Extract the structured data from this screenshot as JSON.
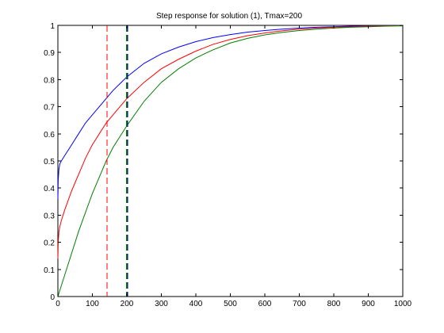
{
  "chart_data": {
    "type": "line",
    "title": "Step response for solution (1), Tmax=200",
    "xlabel": "",
    "ylabel": "",
    "xlim": [
      0,
      1000
    ],
    "ylim": [
      0,
      1
    ],
    "x_ticks": [
      0,
      100,
      200,
      300,
      400,
      500,
      600,
      700,
      800,
      900,
      1000
    ],
    "y_ticks": [
      0,
      0.1,
      0.2,
      0.3,
      0.4,
      0.5,
      0.6,
      0.7,
      0.8,
      0.9,
      1
    ],
    "x_tick_labels": [
      "0",
      "100",
      "200",
      "300",
      "400",
      "500",
      "600",
      "700",
      "800",
      "900",
      "1000"
    ],
    "y_tick_labels": [
      "0",
      "0.1",
      "0.2",
      "0.3",
      "0.4",
      "0.5",
      "0.6",
      "0.7",
      "0.8",
      "0.9",
      "1"
    ],
    "grid": false,
    "legend": "none",
    "series": [
      {
        "color": "#0000ff",
        "x": [
          0,
          1,
          3,
          6,
          10,
          20,
          40,
          60,
          80,
          100,
          120,
          140,
          160,
          180,
          200,
          250,
          300,
          350,
          400,
          450,
          500,
          550,
          600,
          650,
          700,
          750,
          800,
          850,
          900,
          950,
          1000
        ],
        "y": [
          0.36,
          0.43,
          0.47,
          0.49,
          0.5,
          0.52,
          0.56,
          0.6,
          0.64,
          0.67,
          0.7,
          0.73,
          0.76,
          0.785,
          0.81,
          0.86,
          0.895,
          0.92,
          0.94,
          0.955,
          0.966,
          0.975,
          0.981,
          0.986,
          0.99,
          0.993,
          0.995,
          0.997,
          0.998,
          0.999,
          1.0
        ]
      },
      {
        "color": "#ff0000",
        "x": [
          0,
          1,
          3,
          6,
          10,
          20,
          40,
          60,
          80,
          100,
          120,
          140,
          160,
          180,
          200,
          250,
          300,
          350,
          400,
          450,
          500,
          550,
          600,
          650,
          700,
          750,
          800,
          850,
          900,
          950,
          1000
        ],
        "y": [
          0.14,
          0.2,
          0.24,
          0.26,
          0.28,
          0.32,
          0.39,
          0.45,
          0.51,
          0.56,
          0.6,
          0.64,
          0.67,
          0.7,
          0.73,
          0.79,
          0.84,
          0.875,
          0.905,
          0.93,
          0.948,
          0.962,
          0.972,
          0.98,
          0.986,
          0.99,
          0.993,
          0.995,
          0.997,
          0.998,
          0.999
        ]
      },
      {
        "color": "#007f00",
        "x": [
          0,
          20,
          40,
          60,
          80,
          100,
          120,
          140,
          160,
          180,
          200,
          250,
          300,
          350,
          400,
          450,
          500,
          550,
          600,
          650,
          700,
          750,
          800,
          850,
          900,
          950,
          1000
        ],
        "y": [
          0.0,
          0.08,
          0.16,
          0.24,
          0.31,
          0.38,
          0.44,
          0.5,
          0.55,
          0.59,
          0.63,
          0.72,
          0.79,
          0.84,
          0.88,
          0.91,
          0.935,
          0.952,
          0.965,
          0.974,
          0.981,
          0.986,
          0.99,
          0.993,
          0.995,
          0.997,
          0.998
        ]
      }
    ],
    "vertical_markers": [
      {
        "x": 142,
        "color": "#ff0000",
        "style": "dashed",
        "stroke_width": 1
      },
      {
        "x": 200,
        "color": "#007f00",
        "style": "dashed",
        "stroke_width": 2
      },
      {
        "x": 202,
        "color": "#000080",
        "style": "dashed",
        "stroke_width": 1
      }
    ]
  }
}
